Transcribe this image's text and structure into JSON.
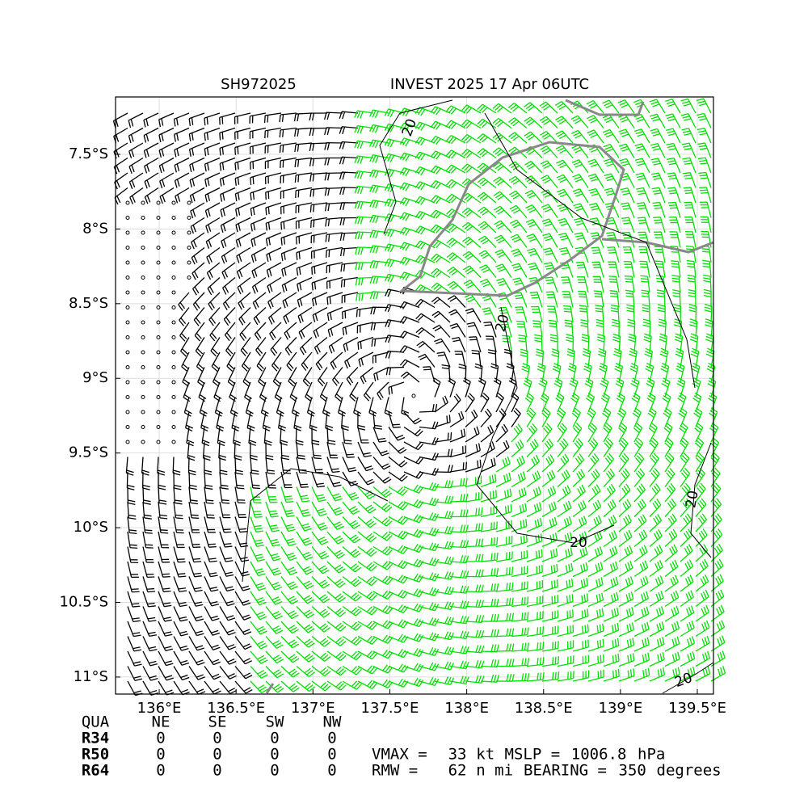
{
  "chart_data": {
    "type": "wind-barb-map",
    "title_left": "SH972025",
    "title": "INVEST 2025 17 Apr 06UTC",
    "xlim": [
      135.716,
      139.605
    ],
    "ylim": [
      -11.114,
      -7.116
    ],
    "xticks": [
      {
        "value": 136,
        "label": "136°E"
      },
      {
        "value": 136.5,
        "label": "136.5°E"
      },
      {
        "value": 137,
        "label": "137°E"
      },
      {
        "value": 137.5,
        "label": "137.5°E"
      },
      {
        "value": 138,
        "label": "138°E"
      },
      {
        "value": 138.5,
        "label": "138.5°E"
      },
      {
        "value": 139,
        "label": "139°E"
      },
      {
        "value": 139.5,
        "label": "139.5°E"
      }
    ],
    "yticks": [
      {
        "value": -7.5,
        "label": "7.5°S"
      },
      {
        "value": -8,
        "label": "8°S"
      },
      {
        "value": -8.5,
        "label": "8.5°S"
      },
      {
        "value": -9,
        "label": "9°S"
      },
      {
        "value": -9.5,
        "label": "9.5°S"
      },
      {
        "value": -10,
        "label": "10°S"
      },
      {
        "value": -10.5,
        "label": "10.5°S"
      },
      {
        "value": -11,
        "label": "11°S"
      }
    ],
    "grid": true,
    "center": {
      "x": 137.655,
      "y": -9.117
    },
    "contour_level": 20,
    "radii": {
      "columns": [
        "QUA",
        "NE",
        "SE",
        "SW",
        "NW"
      ],
      "rows": [
        {
          "name": "R34",
          "values": [
            0,
            0,
            0,
            0
          ]
        },
        {
          "name": "R50",
          "values": [
            0,
            0,
            0,
            0
          ]
        },
        {
          "name": "R64",
          "values": [
            0,
            0,
            0,
            0
          ]
        }
      ]
    },
    "vmax": {
      "label": "VMAX =",
      "value": 33,
      "unit": "kt"
    },
    "mslp": {
      "label": "MSLP =",
      "value": 1006.8,
      "unit": "hPa"
    },
    "rmw": {
      "label": "RMW =",
      "value": 62,
      "unit": "n mi"
    },
    "bearing": {
      "label": "BEARING =",
      "value": 350,
      "unit": "degrees"
    }
  }
}
